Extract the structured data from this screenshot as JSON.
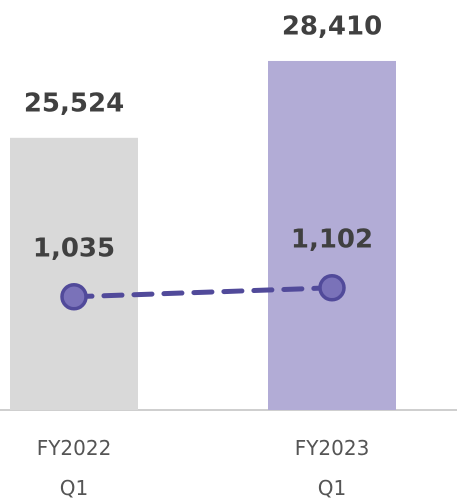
{
  "chart_data": {
    "type": "bar",
    "categories": [
      "FY2022 Q1",
      "FY2023 Q1"
    ],
    "series": [
      {
        "type": "bar",
        "values": [
          25524,
          28410
        ],
        "value_labels": [
          "25,524",
          "28,410"
        ],
        "colors": [
          "#d9d9d9",
          "#b2acd6"
        ]
      },
      {
        "type": "line",
        "axis": "y2",
        "values": [
          1035,
          1102
        ],
        "value_labels": [
          "1,035",
          "1,102"
        ],
        "color": "#514a9a",
        "marker_color": "#7a72b9",
        "dashed": true
      }
    ],
    "ylim": [
      15300,
      30700
    ],
    "y2lim": [
      190,
      3250
    ]
  }
}
